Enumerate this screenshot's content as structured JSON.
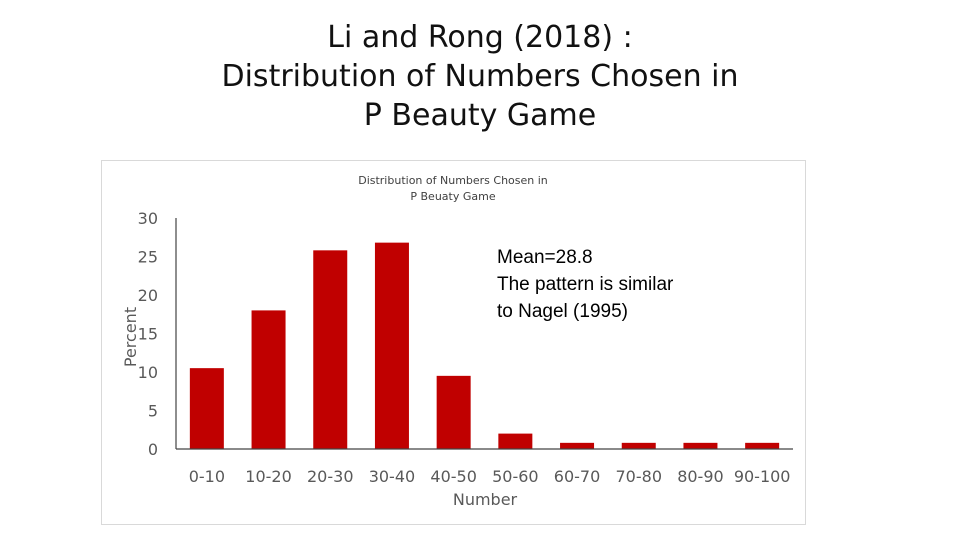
{
  "slide": {
    "title_lines": [
      "Li and Rong (2018) :",
      "Distribution of Numbers Chosen in",
      "P Beauty Game"
    ]
  },
  "chart_data": {
    "type": "bar",
    "title_lines": [
      "Distribution of Numbers Chosen in",
      "P Beuaty Game"
    ],
    "xlabel": "Number",
    "ylabel": "Percent",
    "categories": [
      "0-10",
      "10-20",
      "20-30",
      "30-40",
      "40-50",
      "50-60",
      "60-70",
      "70-80",
      "80-90",
      "90-100"
    ],
    "values": [
      10.5,
      18,
      25.8,
      26.8,
      9.5,
      2,
      0.8,
      0.8,
      0.8,
      0.8
    ],
    "ylim": [
      0,
      30
    ],
    "yticks": [
      0,
      5,
      10,
      15,
      20,
      25,
      30
    ],
    "grid": false,
    "bar_color": "#c00000",
    "annotation_lines": [
      "Mean=28.8",
      "The  pattern is similar",
      "to Nagel (1995)"
    ]
  }
}
